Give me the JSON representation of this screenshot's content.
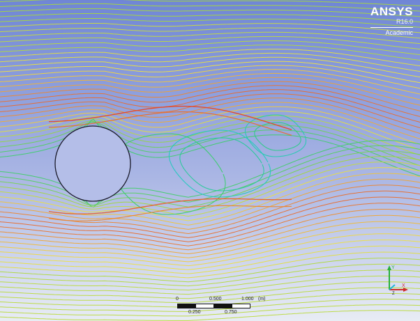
{
  "viewer": {
    "brand": "ANSYS",
    "version": "R16.0",
    "license": "Academic"
  },
  "scale_bar": {
    "top_labels": [
      "0",
      "0.500",
      "1.000"
    ],
    "unit": "(m)",
    "bottom_labels": [
      "0.250",
      "0.750"
    ]
  },
  "triad": {
    "axes": [
      "Y",
      "X",
      "Z"
    ]
  },
  "colors": {
    "background_top": "#6f86d6",
    "background_bottom": "#e8ecf4",
    "streamline_palette": [
      "#20c8d8",
      "#2ecc71",
      "#a8d83a",
      "#f0e040",
      "#f0a030",
      "#e03a2a"
    ],
    "cylinder_fill": "#b4bee8",
    "cylinder_outline": "#1a1a2a"
  }
}
